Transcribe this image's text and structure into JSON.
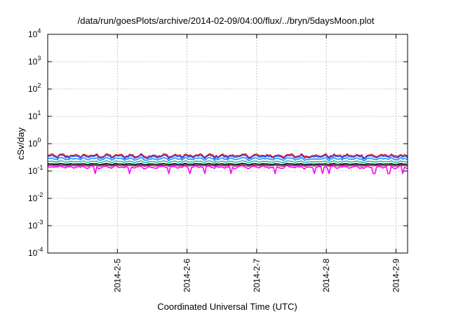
{
  "chart_data": {
    "type": "line",
    "title": "/data/run/goesPlots/archive/2014-02-09/04:00/flux/../bryn/5daysMoon.plot",
    "xlabel": "Coordinated Universal Time (UTC)",
    "ylabel": "cSv/day",
    "y_scale": "log",
    "ylim": [
      0.0001,
      10000
    ],
    "y_ticks": [
      {
        "base": "10",
        "exp": "-4",
        "value": 0.0001
      },
      {
        "base": "10",
        "exp": "-3",
        "value": 0.001
      },
      {
        "base": "10",
        "exp": "-2",
        "value": 0.01
      },
      {
        "base": "10",
        "exp": "-1",
        "value": 0.1
      },
      {
        "base": "10",
        "exp": "0",
        "value": 1
      },
      {
        "base": "10",
        "exp": "1",
        "value": 10
      },
      {
        "base": "10",
        "exp": "2",
        "value": 100
      },
      {
        "base": "10",
        "exp": "3",
        "value": 1000
      },
      {
        "base": "10",
        "exp": "4",
        "value": 10000
      }
    ],
    "xlim": [
      "2014-02-04 00:00",
      "2014-02-09 04:00"
    ],
    "x_ticks": [
      {
        "label": "2014-2-5",
        "value": "2014-02-05 00:00"
      },
      {
        "label": "2014-2-6",
        "value": "2014-02-06 00:00"
      },
      {
        "label": "2014-2-7",
        "value": "2014-02-07 00:00"
      },
      {
        "label": "2014-2-8",
        "value": "2014-02-08 00:00"
      },
      {
        "label": "2014-2-9",
        "value": "2014-02-09 00:00"
      }
    ],
    "grid": true,
    "legend": "none",
    "series": [
      {
        "color": "#e41a1c",
        "base": 0.34,
        "amp": 0.1
      },
      {
        "color": "#1f4fff",
        "base": 0.31,
        "amp": 0.09
      },
      {
        "color": "#1e90ff",
        "base": 0.26,
        "amp": 0.06
      },
      {
        "color": "#20c0a0",
        "base": 0.21,
        "amp": 0.03
      },
      {
        "color": "#000000",
        "base": 0.175,
        "amp": 0.015
      },
      {
        "color": "#8b2252",
        "base": 0.155,
        "amp": 0.015
      },
      {
        "color": "#ff00ff",
        "base": 0.13,
        "amp": 0.03
      }
    ]
  }
}
